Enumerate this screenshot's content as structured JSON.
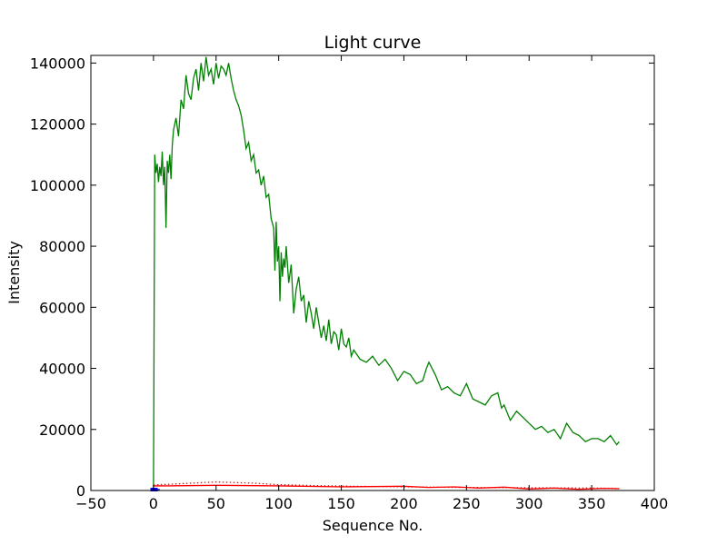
{
  "chart_data": {
    "type": "line",
    "title": "Light curve",
    "xlabel": "Sequence No.",
    "ylabel": "Intensity",
    "xlim": [
      -50,
      400
    ],
    "ylim": [
      0,
      142500
    ],
    "xticks": [
      -50,
      0,
      50,
      100,
      150,
      200,
      250,
      300,
      350,
      400
    ],
    "yticks": [
      0,
      20000,
      40000,
      60000,
      80000,
      100000,
      120000,
      140000
    ],
    "xtick_labels": [
      "−50",
      "0",
      "50",
      "100",
      "150",
      "200",
      "250",
      "300",
      "350",
      "400"
    ],
    "ytick_labels": [
      "0",
      "20000",
      "40000",
      "60000",
      "80000",
      "100000",
      "120000",
      "140000"
    ],
    "grid": false,
    "series": [
      {
        "color": "#008000",
        "style": "solid",
        "x": [
          0,
          1,
          2,
          3,
          4,
          5,
          6,
          7,
          8,
          9,
          10,
          11,
          12,
          13,
          14,
          15,
          16,
          18,
          20,
          22,
          24,
          26,
          28,
          30,
          32,
          34,
          36,
          38,
          40,
          42,
          44,
          46,
          48,
          50,
          52,
          54,
          56,
          58,
          60,
          62,
          64,
          66,
          68,
          70,
          72,
          74,
          76,
          78,
          80,
          82,
          84,
          86,
          88,
          90,
          92,
          94,
          96,
          97,
          98,
          99,
          100,
          101,
          102,
          103,
          104,
          105,
          106,
          108,
          110,
          112,
          114,
          116,
          118,
          120,
          122,
          124,
          126,
          128,
          130,
          132,
          134,
          136,
          138,
          140,
          142,
          144,
          146,
          148,
          150,
          152,
          154,
          156,
          158,
          160,
          165,
          170,
          175,
          180,
          185,
          190,
          195,
          200,
          205,
          210,
          215,
          218,
          220,
          225,
          230,
          235,
          240,
          245,
          250,
          255,
          260,
          265,
          270,
          275,
          278,
          280,
          285,
          290,
          295,
          300,
          305,
          310,
          315,
          320,
          325,
          330,
          335,
          340,
          345,
          350,
          355,
          360,
          365,
          370,
          372
        ],
        "y": [
          0,
          110000,
          104000,
          107000,
          101000,
          106000,
          103000,
          111000,
          100000,
          106000,
          86000,
          108000,
          104000,
          110000,
          102000,
          113000,
          118000,
          122000,
          116000,
          128000,
          125000,
          136000,
          130000,
          128000,
          135000,
          138000,
          131000,
          140000,
          134000,
          142000,
          136000,
          138000,
          133000,
          140000,
          135000,
          139000,
          138000,
          136000,
          140000,
          135000,
          131000,
          128000,
          126000,
          123000,
          118000,
          112000,
          114000,
          108000,
          110000,
          104000,
          105000,
          100000,
          103000,
          96000,
          97000,
          89000,
          86000,
          72000,
          88000,
          75000,
          80000,
          62000,
          78000,
          70000,
          76000,
          73000,
          80000,
          68000,
          74000,
          58000,
          66000,
          70000,
          62000,
          64000,
          55000,
          62000,
          58000,
          53000,
          60000,
          55000,
          50000,
          54000,
          49000,
          56000,
          48000,
          52000,
          51000,
          46000,
          53000,
          48000,
          47000,
          50000,
          44000,
          46000,
          43000,
          42000,
          44000,
          41000,
          43000,
          40000,
          36000,
          39000,
          38000,
          35000,
          36000,
          40000,
          42000,
          38000,
          33000,
          34000,
          32000,
          31000,
          35000,
          30000,
          29000,
          28000,
          31000,
          32000,
          27000,
          28000,
          23000,
          26000,
          24000,
          22000,
          20000,
          21000,
          19000,
          20000,
          17000,
          22000,
          19000,
          18000,
          16000,
          17000,
          17000,
          16000,
          18000,
          15000,
          16000
        ]
      },
      {
        "color": "#ff0000",
        "style": "solid",
        "x": [
          0,
          10,
          50,
          100,
          150,
          200,
          220,
          240,
          260,
          280,
          300,
          320,
          340,
          360,
          372
        ],
        "y": [
          1500,
          1500,
          1700,
          1500,
          1200,
          1400,
          1000,
          1200,
          800,
          1100,
          500,
          800,
          400,
          700,
          600
        ]
      },
      {
        "color": "#ff0000",
        "style": "dotted",
        "x": [
          0,
          20,
          50,
          80,
          100,
          130,
          160,
          200,
          250,
          300,
          350,
          372
        ],
        "y": [
          1800,
          2200,
          2800,
          2400,
          1900,
          1600,
          1400,
          1200,
          1000,
          900,
          800,
          700
        ]
      },
      {
        "color": "#0000ff",
        "style": "solid",
        "x": [
          -1,
          5
        ],
        "y": [
          300,
          300
        ]
      }
    ]
  }
}
